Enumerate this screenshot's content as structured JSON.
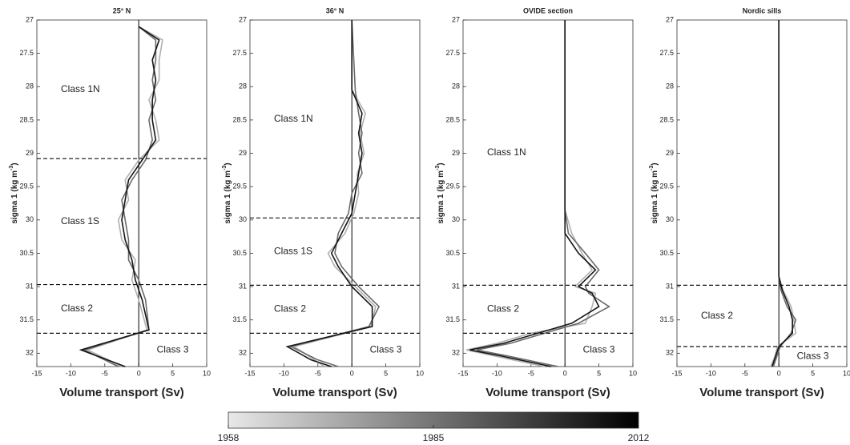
{
  "chart_data": [
    {
      "type": "line",
      "title": "25° N",
      "ylabel": "sigma 1 (kg m",
      "ylabel_sup": "-3",
      "ylabel_end": ")",
      "xlabel": "Volume transport (Sv)",
      "xlim": [
        -15,
        10
      ],
      "xticks": [
        -15,
        -10,
        -5,
        0,
        5,
        10
      ],
      "ylim": [
        27,
        32.2
      ],
      "yticks": [
        27,
        27.5,
        28,
        28.5,
        29,
        29.5,
        30,
        30.5,
        31,
        31.5,
        32
      ],
      "y_inverted": true,
      "y": [
        27.1,
        27.3,
        27.6,
        27.9,
        28.2,
        28.5,
        28.8,
        29.1,
        29.4,
        29.7,
        30.0,
        30.3,
        30.6,
        30.9,
        31.2,
        31.65,
        31.95,
        32.2
      ],
      "series": [
        {
          "color": "#b0b0b0",
          "values": [
            0,
            3.5,
            3,
            3,
            1.5,
            2.5,
            3,
            0,
            -2,
            -1.5,
            -3,
            -2.5,
            -0.5,
            -1,
            0,
            1.2,
            -7.5,
            -2.5
          ]
        },
        {
          "color": "#6a6a6a",
          "values": [
            0,
            2.5,
            2.5,
            2,
            2.5,
            1.5,
            2,
            1,
            -1,
            -2.5,
            -2,
            -1.5,
            -1.5,
            0,
            1,
            1.5,
            -8,
            -3
          ]
        },
        {
          "color": "#151515",
          "values": [
            0,
            3,
            2,
            2.5,
            2,
            2,
            2.5,
            0.5,
            -1.5,
            -2,
            -2.5,
            -2,
            -1,
            -0.5,
            0.5,
            1.5,
            -8.5,
            -2
          ]
        }
      ],
      "boundaries": [
        29.08,
        30.97,
        31.7
      ],
      "annotations": [
        "Class 1N",
        "Class 1S",
        "Class 2",
        "Class 3"
      ]
    },
    {
      "type": "line",
      "title": "36° N",
      "ylabel": "sigma 1 (kg m",
      "ylabel_sup": "-3",
      "ylabel_end": ")",
      "xlabel": "Volume transport (Sv)",
      "xlim": [
        -15,
        10
      ],
      "xticks": [
        -15,
        -10,
        -5,
        0,
        5,
        10
      ],
      "ylim": [
        27,
        32.2
      ],
      "yticks": [
        27,
        27.5,
        28,
        28.5,
        29,
        29.5,
        30,
        30.5,
        31,
        31.5,
        32
      ],
      "y_inverted": true,
      "y": [
        27,
        28.05,
        28.4,
        28.7,
        29.0,
        29.3,
        29.6,
        29.9,
        30.2,
        30.5,
        30.7,
        31.0,
        31.3,
        31.6,
        31.9,
        32.1,
        32.2
      ],
      "series": [
        {
          "color": "#b0b0b0",
          "values": [
            0,
            0,
            2,
            1.2,
            1.8,
            0.8,
            1,
            0.3,
            -1,
            -3.5,
            -2.5,
            0.5,
            3.5,
            2.8,
            -8.5,
            -5.5,
            -4
          ]
        },
        {
          "color": "#6a6a6a",
          "values": [
            0,
            0.5,
            1,
            1.5,
            1,
            1.5,
            0,
            -0.5,
            -2,
            -2.5,
            -1.5,
            1,
            4,
            2.5,
            -9,
            -5,
            -2
          ]
        },
        {
          "color": "#151515",
          "values": [
            0,
            0,
            1.5,
            1,
            1.5,
            1,
            0.5,
            0,
            -1.5,
            -3,
            -2,
            0,
            3,
            3,
            -9.5,
            -6,
            -3
          ]
        }
      ],
      "boundaries": [
        29.97,
        30.98,
        31.7
      ],
      "annotations": [
        "Class 1N",
        "Class 1S",
        "Class 2",
        "Class 3"
      ]
    },
    {
      "type": "line",
      "title": "OVIDE section",
      "ylabel": "sigma 1 (kg m",
      "ylabel_sup": "-3",
      "ylabel_end": ")",
      "xlabel": "Volume transport (Sv)",
      "xlim": [
        -15,
        10
      ],
      "xticks": [
        -15,
        -10,
        -5,
        0,
        5,
        10
      ],
      "ylim": [
        27,
        32.2
      ],
      "yticks": [
        27,
        27.5,
        28,
        28.5,
        29,
        29.5,
        30,
        30.5,
        31,
        31.5,
        32
      ],
      "y_inverted": true,
      "y": [
        27,
        29.85,
        30.2,
        30.5,
        30.75,
        31.0,
        31.1,
        31.3,
        31.55,
        31.7,
        31.85,
        31.95,
        32.05,
        32.2
      ],
      "series": [
        {
          "color": "#b0b0b0",
          "values": [
            0,
            0,
            1,
            2.5,
            4,
            1.5,
            4.5,
            4,
            3,
            -5,
            -10,
            -14.5,
            -10,
            -3
          ]
        },
        {
          "color": "#6a6a6a",
          "values": [
            0,
            0,
            0.5,
            3,
            5,
            3,
            3.5,
            6.5,
            2,
            -3,
            -8,
            -13,
            -8,
            -1
          ]
        },
        {
          "color": "#151515",
          "values": [
            0,
            0,
            0,
            2,
            4.5,
            2,
            4,
            5,
            1,
            -4,
            -9,
            -14,
            -9,
            -2
          ]
        }
      ],
      "boundaries": [
        30.98,
        31.7
      ],
      "annotations": [
        "Class 1N",
        "Class 2",
        "Class 3"
      ]
    },
    {
      "type": "line",
      "title": "Nordic sills",
      "ylabel": "sigma 1 (kg m",
      "ylabel_sup": "-3",
      "ylabel_end": ")",
      "xlabel": "Volume transport (Sv)",
      "xlim": [
        -15,
        10
      ],
      "xticks": [
        -15,
        -10,
        -5,
        0,
        5,
        10
      ],
      "ylim": [
        27,
        32.2
      ],
      "yticks": [
        27,
        27.5,
        28,
        28.5,
        29,
        29.5,
        30,
        30.5,
        31,
        31.5,
        32
      ],
      "y_inverted": true,
      "y": [
        27,
        30.85,
        31.05,
        31.3,
        31.5,
        31.7,
        31.9,
        32.05,
        32.2
      ],
      "series": [
        {
          "color": "#b0b0b0",
          "values": [
            0,
            0,
            0.6,
            1.8,
            2.2,
            2.5,
            -0.2,
            -0.6,
            -1.2
          ]
        },
        {
          "color": "#6a6a6a",
          "values": [
            0,
            0,
            0.3,
            1.2,
            2.5,
            1.8,
            0.2,
            -0.3,
            -0.8
          ]
        },
        {
          "color": "#151515",
          "values": [
            0,
            0,
            0.5,
            1.5,
            2,
            2,
            0,
            -0.5,
            -1
          ]
        }
      ],
      "boundaries": [
        30.98,
        31.9
      ],
      "annotations": [
        "Class 2",
        "Class 3"
      ]
    }
  ],
  "colorbar": {
    "range": [
      1958,
      2012
    ],
    "ticks": [
      1958,
      1985,
      2012
    ],
    "colors": [
      "#e8e8e8",
      "#000000"
    ]
  }
}
